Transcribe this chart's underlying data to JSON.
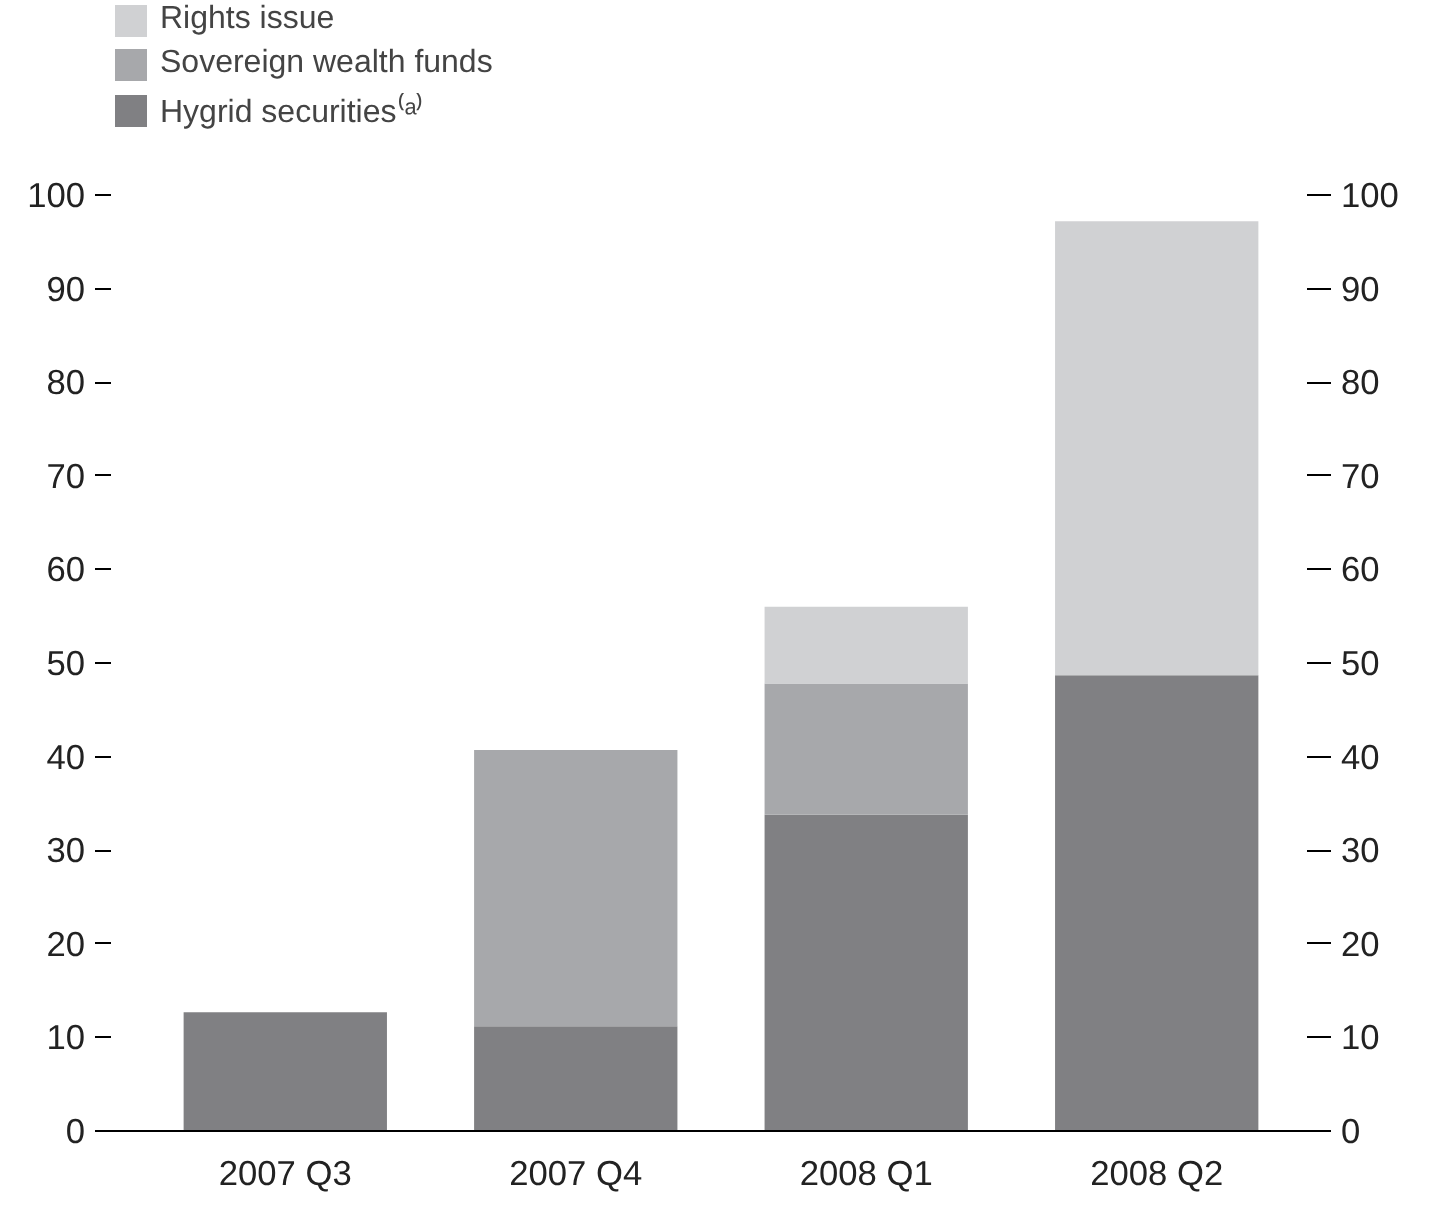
{
  "chart_data": {
    "type": "bar",
    "stacked": true,
    "categories": [
      "2007 Q3",
      "2007 Q4",
      "2008 Q1",
      "2008 Q2"
    ],
    "series": [
      {
        "name": "Hygrid securities⁽ᵃ⁾",
        "color": "#808083",
        "values": [
          12.7,
          11.2,
          33.8,
          48.7
        ]
      },
      {
        "name": "Sovereign wealth funds",
        "color": "#a7a8ab",
        "values": [
          null,
          29.5,
          14.0,
          null
        ]
      },
      {
        "name": "Rights issue",
        "color": "#d0d1d3",
        "values": [
          null,
          null,
          8.2,
          48.5
        ]
      }
    ],
    "ylim": [
      0,
      100
    ],
    "yticks": [
      0,
      10,
      20,
      30,
      40,
      50,
      60,
      70,
      80,
      90,
      100
    ],
    "y2lim": [
      0,
      100
    ],
    "y2ticks": [
      0,
      10,
      20,
      30,
      40,
      50,
      60,
      70,
      80,
      90,
      100
    ],
    "grid": false,
    "legend": "top left"
  }
}
